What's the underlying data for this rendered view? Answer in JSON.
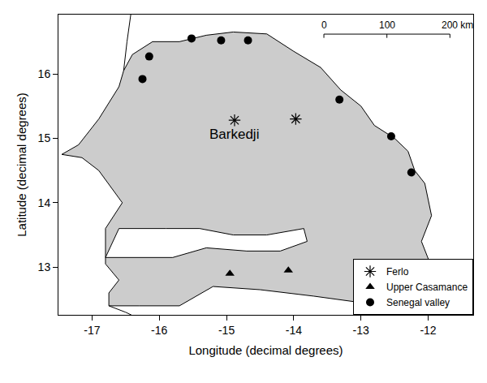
{
  "chart_data": {
    "type": "scatter",
    "x_label": "Longitude (decimal degrees)",
    "y_label": "Latitude (decimal degrees)",
    "xlim": [
      -17.5,
      -11.33
    ],
    "xticks": [
      -17,
      -16,
      -15,
      -14,
      -13,
      -12
    ],
    "ylim": [
      12.26,
      16.92
    ],
    "yticks": [
      13,
      14,
      15,
      16
    ],
    "legend": "bottom right",
    "series": [
      {
        "name": "Ferlo",
        "color": "#000000",
        "marker": "asterisk",
        "x": [
          -14.88,
          -13.97
        ],
        "y": [
          15.28,
          15.3
        ]
      },
      {
        "name": "Upper Casamance",
        "color": "#000000",
        "marker": "triangle",
        "x": [
          -14.95,
          -14.08
        ],
        "y": [
          12.9,
          12.95
        ]
      },
      {
        "name": "Senegal valley",
        "color": "#000000",
        "marker": "circle",
        "x": [
          -16.25,
          -16.15,
          -15.52,
          -15.08,
          -14.68,
          -13.32,
          -12.55,
          -12.25
        ],
        "y": [
          15.92,
          16.27,
          16.55,
          16.52,
          16.52,
          15.6,
          15.03,
          14.47
        ]
      }
    ],
    "annotations": [
      {
        "text": "Barkedji",
        "x": -14.88,
        "y": 15.28
      }
    ],
    "scale_bar": {
      "ticks": [
        {
          "value": 0,
          "label": "0"
        },
        {
          "value": 100,
          "label": "100"
        },
        {
          "value": 200,
          "label": "200 km"
        }
      ]
    }
  }
}
